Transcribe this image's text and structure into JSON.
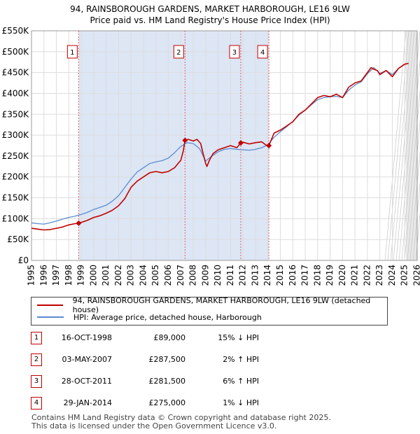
{
  "title_line1": "94, RAINSBOROUGH GARDENS, MARKET HARBOROUGH, LE16 9LW",
  "title_line2": "Price paid vs. HM Land Registry's House Price Index (HPI)",
  "legend": {
    "property_label": "94, RAINSBOROUGH GARDENS, MARKET HARBOROUGH, LE16 9LW (detached house)",
    "hpi_label": "HPI: Average price, detached house, Harborough"
  },
  "transactions": [
    {
      "num": "1",
      "date": "16-OCT-1998",
      "price": "£89,000",
      "hpi": "15% ↓ HPI"
    },
    {
      "num": "2",
      "date": "03-MAY-2007",
      "price": "£287,500",
      "hpi": "2% ↑ HPI"
    },
    {
      "num": "3",
      "date": "28-OCT-2011",
      "price": "£281,500",
      "hpi": "6% ↑ HPI"
    },
    {
      "num": "4",
      "date": "29-JAN-2014",
      "price": "£275,000",
      "hpi": "1% ↓ HPI"
    }
  ],
  "footer": {
    "line1": "Contains HM Land Registry data © Crown copyright and database right 2025.",
    "line2": "This data is licensed under the Open Government Licence v3.0."
  },
  "colors": {
    "property": "#c00000",
    "hpi": "#5b8dd0",
    "sale_band": "#dde6f5",
    "future_band": "#e8e8e8",
    "grid": "#dddddd",
    "marker_line": "#e06060"
  },
  "chart_data": {
    "type": "line",
    "title": "94, RAINSBOROUGH GARDENS, MARKET HARBOROUGH, LE16 9LW — Price paid vs. HM Land Registry's House Price Index (HPI)",
    "xlabel": "",
    "ylabel": "",
    "xlim": [
      1995,
      2026
    ],
    "ylim": [
      0,
      550000
    ],
    "x_ticks": [
      1995,
      1996,
      1997,
      1998,
      1999,
      2000,
      2001,
      2002,
      2003,
      2004,
      2005,
      2006,
      2007,
      2008,
      2009,
      2010,
      2011,
      2012,
      2013,
      2014,
      2015,
      2016,
      2017,
      2018,
      2019,
      2020,
      2021,
      2022,
      2023,
      2024,
      2025,
      2026
    ],
    "y_ticks": [
      {
        "value": 0,
        "label": "£0"
      },
      {
        "value": 50000,
        "label": "£50K"
      },
      {
        "value": 100000,
        "label": "£100K"
      },
      {
        "value": 150000,
        "label": "£150K"
      },
      {
        "value": 200000,
        "label": "£200K"
      },
      {
        "value": 250000,
        "label": "£250K"
      },
      {
        "value": 300000,
        "label": "£300K"
      },
      {
        "value": 350000,
        "label": "£350K"
      },
      {
        "value": 400000,
        "label": "£400K"
      },
      {
        "value": 450000,
        "label": "£450K"
      },
      {
        "value": 500000,
        "label": "£500K"
      },
      {
        "value": 550000,
        "label": "£550K"
      }
    ],
    "grid": true,
    "series": [
      {
        "name": "94, RAINSBOROUGH GARDENS, MARKET HARBOROUGH, LE16 9LW (detached house)",
        "x": [
          1995.0,
          1995.5,
          1996.0,
          1996.5,
          1997.0,
          1997.5,
          1998.0,
          1998.5,
          1998.79,
          1999.0,
          1999.5,
          2000.0,
          2000.5,
          2001.0,
          2001.5,
          2002.0,
          2002.5,
          2003.0,
          2003.5,
          2004.0,
          2004.5,
          2005.0,
          2005.5,
          2006.0,
          2006.5,
          2007.0,
          2007.2,
          2007.34,
          2007.6,
          2008.0,
          2008.3,
          2008.6,
          2008.8,
          2009.0,
          2009.1,
          2009.3,
          2009.6,
          2010.0,
          2010.5,
          2011.0,
          2011.5,
          2011.82,
          2012.0,
          2012.5,
          2013.0,
          2013.5,
          2014.0,
          2014.08,
          2014.5,
          2015.0,
          2015.5,
          2016.0,
          2016.5,
          2017.0,
          2017.5,
          2018.0,
          2018.5,
          2019.0,
          2019.5,
          2020.0,
          2020.5,
          2021.0,
          2021.5,
          2022.0,
          2022.3,
          2022.5,
          2022.8,
          2023.0,
          2023.5,
          2024.0,
          2024.5,
          2025.0,
          2025.3
        ],
        "values": [
          77000,
          75000,
          73000,
          74000,
          77000,
          80000,
          85000,
          88000,
          89000,
          91000,
          96000,
          103000,
          107000,
          113000,
          120000,
          131000,
          148000,
          175000,
          190000,
          200000,
          210000,
          213000,
          210000,
          213000,
          222000,
          240000,
          262000,
          287500,
          290000,
          286000,
          290000,
          280000,
          255000,
          232000,
          225000,
          240000,
          256000,
          265000,
          270000,
          275000,
          270000,
          281500,
          283000,
          279000,
          282000,
          284000,
          273000,
          275000,
          305000,
          312000,
          322000,
          332000,
          350000,
          360000,
          375000,
          390000,
          395000,
          392000,
          398000,
          390000,
          415000,
          425000,
          430000,
          450000,
          462000,
          458000,
          455000,
          445000,
          455000,
          440000,
          460000,
          470000,
          472000
        ]
      },
      {
        "name": "HPI: Average price, detached house, Harborough",
        "x": [
          1995.0,
          1995.5,
          1996.0,
          1996.5,
          1997.0,
          1997.5,
          1998.0,
          1998.5,
          1999.0,
          1999.5,
          2000.0,
          2000.5,
          2001.0,
          2001.5,
          2002.0,
          2002.5,
          2003.0,
          2003.5,
          2004.0,
          2004.5,
          2005.0,
          2005.5,
          2006.0,
          2006.5,
          2007.0,
          2007.5,
          2008.0,
          2008.5,
          2009.0,
          2009.5,
          2010.0,
          2010.5,
          2011.0,
          2011.5,
          2012.0,
          2012.5,
          2013.0,
          2013.5,
          2014.0,
          2014.5,
          2015.0,
          2015.5,
          2016.0,
          2016.5,
          2017.0,
          2017.5,
          2018.0,
          2018.5,
          2019.0,
          2019.5,
          2020.0,
          2020.5,
          2021.0,
          2021.5,
          2022.0,
          2022.5,
          2023.0,
          2023.5,
          2024.0,
          2024.5,
          2025.0,
          2025.3
        ],
        "values": [
          90000,
          88000,
          87000,
          90000,
          94000,
          99000,
          103000,
          106000,
          110000,
          115000,
          122000,
          127000,
          132000,
          142000,
          155000,
          175000,
          195000,
          212000,
          222000,
          232000,
          236000,
          239000,
          245000,
          258000,
          273000,
          282000,
          280000,
          268000,
          238000,
          250000,
          260000,
          266000,
          268000,
          266000,
          265000,
          264000,
          266000,
          270000,
          277000,
          295000,
          308000,
          320000,
          333000,
          348000,
          360000,
          373000,
          385000,
          390000,
          392000,
          393000,
          390000,
          408000,
          420000,
          428000,
          447000,
          462000,
          448000,
          455000,
          445000,
          460000,
          470000,
          472000
        ]
      }
    ],
    "sales": [
      {
        "label": "1",
        "x": 1998.79,
        "value": 89000
      },
      {
        "label": "2",
        "x": 2007.34,
        "value": 287500
      },
      {
        "label": "3",
        "x": 2011.82,
        "value": 281500
      },
      {
        "label": "4",
        "x": 2014.08,
        "value": 275000
      }
    ],
    "sale_shading": {
      "from": 1998.79,
      "to": 2014.08
    },
    "future_shading": {
      "from": 2025.1,
      "to": 2026
    }
  }
}
